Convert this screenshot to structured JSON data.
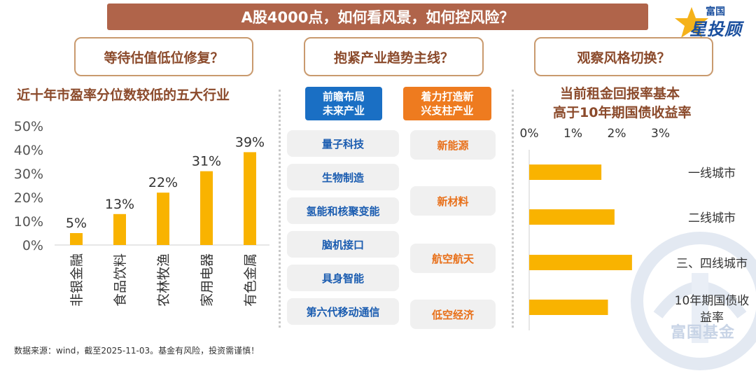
{
  "header": {
    "title": "A股4000点，如何看风景，如何控风险？"
  },
  "logo": {
    "top": "富国",
    "main": "星投顾"
  },
  "watermark": {
    "text": "富国基金"
  },
  "questions": [
    "等待估值低位修复？",
    "抱紧产业趋势主线？",
    "观察风格切换？"
  ],
  "left_panel": {
    "subtitle": "近十年市盈率分位数较低的五大行业"
  },
  "middle_panel": {
    "col1_header": "前瞻布局\n未来产业",
    "col2_header": "着力打造新\n兴支柱产业",
    "col1_items": [
      "量子科技",
      "生物制造",
      "氢能和核聚变能",
      "脑机接口",
      "具身智能",
      "第六代移动通信"
    ],
    "col2_items": [
      "新能源",
      "新材料",
      "航空航天",
      "低空经济"
    ]
  },
  "right_panel": {
    "subtitle_line1": "当前租金回报率基本",
    "subtitle_line2": "高于10年期国债收益率"
  },
  "footer": {
    "source": "数据来源：wind，截至2025-11-03。基金有风险，投资需谨慎！"
  },
  "colors": {
    "bar": "#f9b300",
    "title_bg": "#b0644a",
    "accent_text": "#8b4a2b",
    "blue": "#1a5cb0",
    "orange": "#e8701a"
  },
  "chart_data": [
    {
      "type": "bar",
      "categories": [
        "非银金融",
        "食品饮料",
        "农林牧渔",
        "家用电器",
        "有色金属"
      ],
      "values": [
        5,
        13,
        22,
        31,
        39
      ],
      "value_labels": [
        "5%",
        "13%",
        "22%",
        "31%",
        "39%"
      ],
      "yticks": [
        "0%",
        "10%",
        "20%",
        "30%",
        "40%",
        "50%"
      ],
      "ylim": [
        0,
        50
      ],
      "title": "近十年市盈率分位数较低的五大行业"
    },
    {
      "type": "bar",
      "orientation": "horizontal",
      "categories": [
        "一线城市",
        "二线城市",
        "三、四线城市",
        "10年期国债收益率"
      ],
      "category_lines": [
        [
          "一线城市"
        ],
        [
          "二线城市"
        ],
        [
          "三、四线城市"
        ],
        [
          "10年期国债收",
          "益率"
        ]
      ],
      "values": [
        1.65,
        1.95,
        2.35,
        1.8
      ],
      "xticks": [
        "0%",
        "1%",
        "2%",
        "3%"
      ],
      "xlim": [
        0,
        3
      ],
      "title": "当前租金回报率基本高于10年期国债收益率"
    }
  ]
}
